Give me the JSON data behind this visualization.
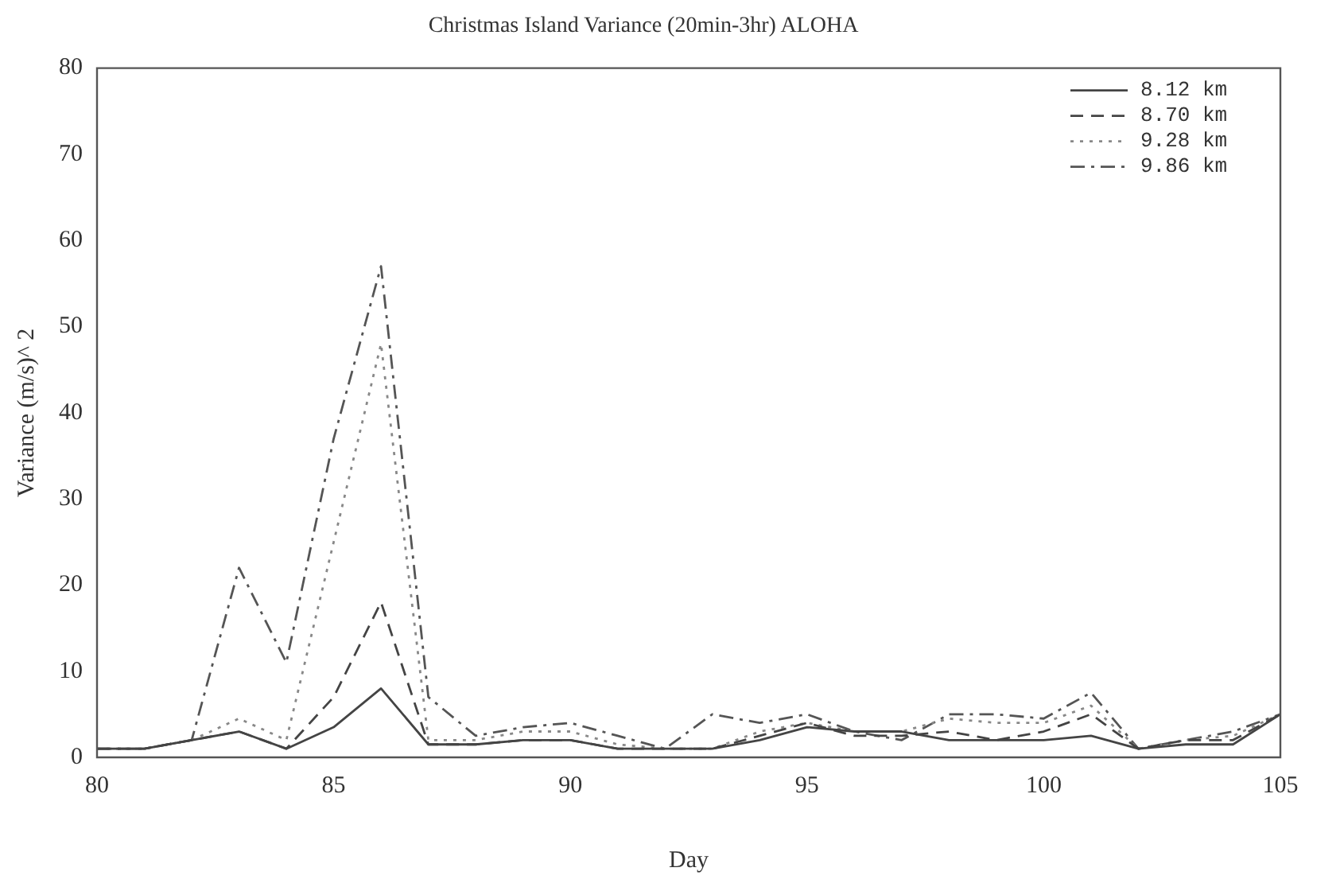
{
  "chart_data": {
    "type": "line",
    "title": "Christmas Island Variance (20min-3hr) ALOHA",
    "xlabel": "Day",
    "ylabel": "Variance (m/s)^ 2",
    "x": [
      80,
      81,
      82,
      83,
      84,
      85,
      86,
      87,
      88,
      89,
      90,
      91,
      92,
      93,
      94,
      95,
      96,
      97,
      98,
      99,
      100,
      101,
      102,
      103,
      104,
      105
    ],
    "series": [
      {
        "name": "8.12 km",
        "color": "#444444",
        "line_style": "solid",
        "values": [
          1,
          1,
          2,
          3,
          1,
          3.5,
          8,
          1.5,
          1.5,
          2,
          2,
          1,
          1,
          1,
          2,
          3.5,
          3,
          3,
          2,
          2,
          2,
          2.5,
          1,
          1.5,
          1.5,
          5
        ]
      },
      {
        "name": "8.70 km",
        "color": "#444444",
        "line_style": "dashed",
        "values": [
          1,
          1,
          2,
          3,
          1,
          7,
          18,
          1.5,
          1.5,
          2,
          2,
          1,
          1,
          1,
          2.5,
          4,
          2.5,
          2.5,
          3,
          2,
          3,
          5,
          1,
          2,
          2,
          5
        ]
      },
      {
        "name": "9.28 km",
        "color": "#888888",
        "line_style": "dotted",
        "values": [
          1,
          1,
          2,
          4.5,
          2,
          25,
          48,
          2,
          2,
          3,
          3,
          1.5,
          1,
          1,
          3,
          4,
          3,
          3,
          4.5,
          4,
          4,
          6,
          1,
          2,
          2.5,
          5
        ]
      },
      {
        "name": "9.86 km",
        "color": "#555555",
        "line_style": "dashdot",
        "values": [
          1,
          1,
          2,
          22,
          11,
          37,
          57,
          7,
          2.5,
          3.5,
          4,
          2.5,
          1,
          5,
          4,
          5,
          3,
          2,
          5,
          5,
          4.5,
          7.5,
          1,
          2,
          3,
          5
        ]
      }
    ],
    "xlim": [
      80,
      105
    ],
    "xticks": [
      80,
      85,
      90,
      95,
      100,
      105
    ],
    "ylim": [
      0,
      80
    ],
    "yticks": [
      0,
      10,
      20,
      30,
      40,
      50,
      60,
      70,
      80
    ],
    "grid": false,
    "legend": "top right",
    "marker": "none"
  }
}
